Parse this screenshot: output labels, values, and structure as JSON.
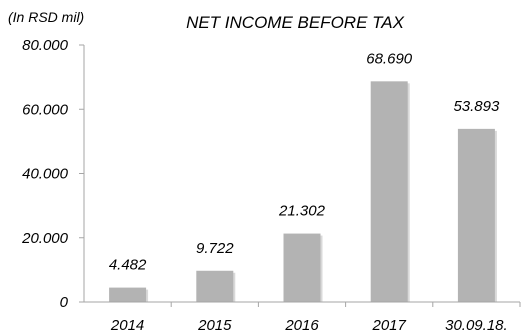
{
  "chart_data": {
    "type": "bar",
    "title": "NET INCOME BEFORE TAX",
    "unit_label": "(In RSD mil)",
    "xlabel": "",
    "ylabel": "",
    "categories": [
      "2014",
      "2015",
      "2016",
      "2017",
      "30.09.18."
    ],
    "values": [
      4482,
      9722,
      21302,
      68690,
      53893
    ],
    "data_labels": [
      "4.482",
      "9.722",
      "21.302",
      "68.690",
      "53.893"
    ],
    "ylim": [
      0,
      80000
    ],
    "yticks": [
      0,
      20000,
      40000,
      60000,
      80000
    ],
    "ytick_labels": [
      "0",
      "20.000",
      "40.000",
      "60.000",
      "80.000"
    ],
    "grid": false,
    "legend": "none",
    "bar_color": "#b3b3b3",
    "bar_shadow_color": "#d9d9d9",
    "axis_color": "#a6a6a6"
  }
}
